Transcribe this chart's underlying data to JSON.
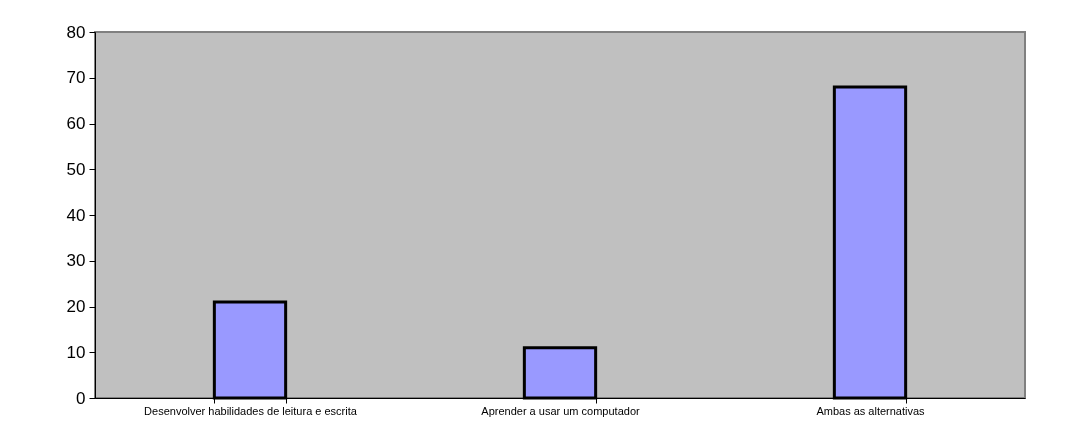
{
  "chart_data": {
    "type": "bar",
    "categories": [
      "Desenvolver habilidades de leitura e escrita",
      "Aprender a usar um computador",
      "Ambas as alternativas"
    ],
    "values": [
      21,
      11,
      68
    ],
    "color": "#9999ff",
    "ylim": [
      0,
      80
    ],
    "yticks": [
      0,
      10,
      20,
      30,
      40,
      50,
      60,
      70,
      80
    ],
    "grid": false
  }
}
